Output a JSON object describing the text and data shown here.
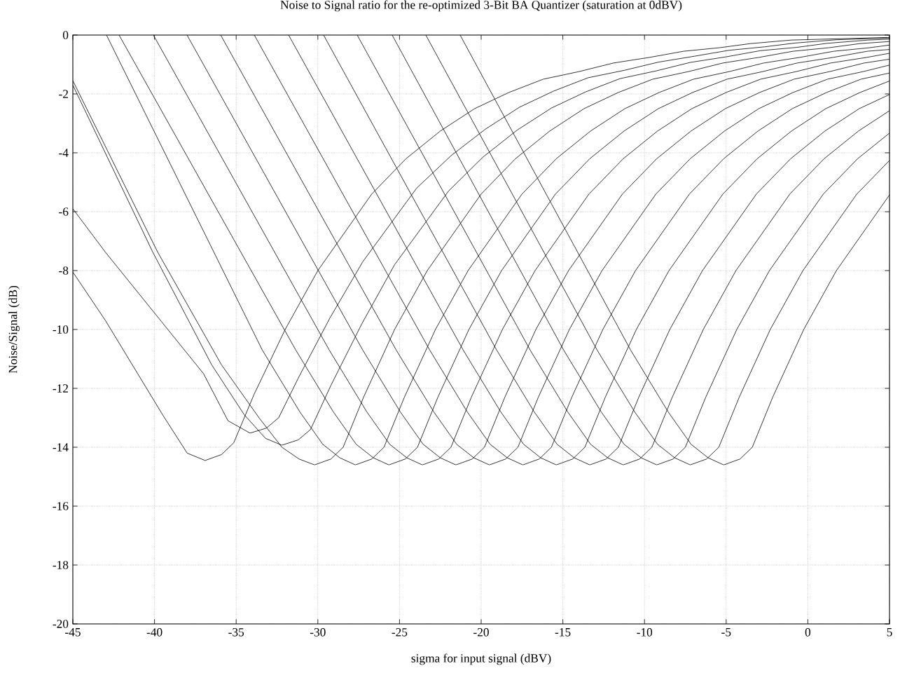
{
  "chart_data": {
    "type": "line",
    "title": "Noise to Signal ratio for the re-optimized 3-Bit BA Quantizer (saturation at 0dBV)",
    "xlabel": "sigma for input signal (dBV)",
    "ylabel": "Noise/Signal (dB)",
    "xlim": [
      -45,
      5
    ],
    "ylim": [
      -20,
      0
    ],
    "xticks": [
      -45,
      -40,
      -35,
      -30,
      -25,
      -20,
      -15,
      -10,
      -5,
      0,
      5
    ],
    "yticks": [
      -20,
      -18,
      -16,
      -14,
      -12,
      -10,
      -8,
      -6,
      -4,
      -2,
      0
    ],
    "grid": true,
    "marker": "none",
    "line_style": "solid",
    "series": [
      {
        "color": "#000000",
        "x": [
          -45,
          -43,
          -39.5,
          -38,
          -36.9,
          -35.9,
          -35.15,
          -33.9,
          -32,
          -30,
          -26.7,
          -24.6,
          -22.5,
          -20.4,
          -18.3,
          -16.2,
          -14,
          -11.9,
          -9.7,
          -7.6,
          -5.4,
          -3.5,
          -1,
          5
        ],
        "values": [
          -8.05,
          -9.7,
          -12.9,
          -14.2,
          -14.45,
          -14.25,
          -13.85,
          -12.2,
          -10,
          -8,
          -5.4,
          -4.2,
          -3.26,
          -2.5,
          -1.95,
          -1.5,
          -1.24,
          -0.95,
          -0.76,
          -0.55,
          -0.43,
          -0.29,
          -0.17,
          -0.08
        ]
      },
      {
        "color": "#000000",
        "x": [
          -45,
          -43,
          -37,
          -35.5,
          -34.15,
          -33.15,
          -32.4,
          -31.15,
          -29.25,
          -27.25,
          -23.95,
          -21.85,
          -19.75,
          -17.65,
          -15.55,
          -13.45,
          -11.25,
          -9.15,
          -6.95,
          -4.85,
          -2.65,
          -0.75,
          1.75,
          5
        ],
        "values": [
          -5.9,
          -7.38,
          -11.5,
          -13.1,
          -13.52,
          -13.35,
          -13,
          -11.6,
          -9.6,
          -7.7,
          -5.2,
          -4.1,
          -3.2,
          -2.45,
          -1.9,
          -1.45,
          -1.2,
          -0.92,
          -0.72,
          -0.52,
          -0.4,
          -0.27,
          -0.16,
          -0.1
        ]
      },
      {
        "color": "#000000",
        "x": [
          -45,
          -40.1,
          -36.5,
          -34.5,
          -33.2,
          -32.2,
          -31.2,
          -30.45,
          -29.2,
          -27.3,
          -25.3,
          -22,
          -19.9,
          -17.8,
          -15.7,
          -13.6,
          -11.5,
          -9.3,
          -7.2,
          -5,
          -2.9,
          -0.7,
          1.2,
          3.7,
          5
        ],
        "values": [
          -1.7,
          -7.38,
          -11.2,
          -12.9,
          -13.7,
          -13.93,
          -13.75,
          -13.4,
          -11.9,
          -9.8,
          -7.8,
          -5.3,
          -4.15,
          -3.23,
          -2.48,
          -1.93,
          -1.48,
          -1.22,
          -0.93,
          -0.74,
          -0.53,
          -0.42,
          -0.28,
          -0.17,
          -0.14
        ]
      },
      {
        "color": "#000000",
        "x": [
          -45,
          -39.8,
          -35.9,
          -33.6,
          -32.2,
          -31.15,
          -30.2,
          -29.2,
          -28.45,
          -27.2,
          -25.3,
          -23.3,
          -20,
          -17.9,
          -15.8,
          -13.7,
          -11.6,
          -9.5,
          -7.3,
          -5.2,
          -3,
          -0.9,
          1.3,
          3.2,
          5
        ],
        "values": [
          -1.55,
          -7.38,
          -11.2,
          -13,
          -14,
          -14.4,
          -14.6,
          -14.4,
          -14,
          -12.3,
          -10,
          -8,
          -5.4,
          -4.2,
          -3.26,
          -2.5,
          -1.95,
          -1.5,
          -1.24,
          -0.95,
          -0.76,
          -0.55,
          -0.43,
          -0.29,
          -0.22
        ]
      },
      {
        "color": "#000000",
        "x": [
          -42.94,
          -33.4,
          -31.1,
          -29.7,
          -28.65,
          -27.7,
          -26.7,
          -25.95,
          -24.7,
          -22.8,
          -20.8,
          -17.5,
          -15.4,
          -13.3,
          -11.2,
          -9.1,
          -7,
          -4.8,
          -2.7,
          -0.5,
          1.6,
          3.8,
          5
        ],
        "values": [
          0,
          -10.7,
          -12.8,
          -13.9,
          -14.36,
          -14.6,
          -14.4,
          -14,
          -12.3,
          -10,
          -8,
          -5.4,
          -4.2,
          -3.26,
          -2.5,
          -1.95,
          -1.5,
          -1.24,
          -0.95,
          -0.76,
          -0.55,
          -0.43,
          -0.34
        ]
      },
      {
        "color": "#000000",
        "x": [
          -42.17,
          -31.35,
          -29.05,
          -27.65,
          -26.6,
          -25.65,
          -24.65,
          -23.9,
          -22.65,
          -20.75,
          -18.75,
          -15.45,
          -13.35,
          -11.25,
          -9.15,
          -7.05,
          -4.95,
          -2.75,
          -0.65,
          1.55,
          3.65,
          5
        ],
        "values": [
          0,
          -10.7,
          -12.8,
          -13.9,
          -14.36,
          -14.6,
          -14.4,
          -14,
          -12.3,
          -10,
          -8,
          -5.4,
          -4.2,
          -3.26,
          -2.5,
          -1.95,
          -1.5,
          -1.24,
          -0.95,
          -0.76,
          -0.55,
          -0.49
        ]
      },
      {
        "color": "#000000",
        "x": [
          -40.07,
          -29.3,
          -27,
          -25.6,
          -24.55,
          -23.6,
          -22.6,
          -21.85,
          -20.6,
          -18.7,
          -16.7,
          -13.4,
          -11.3,
          -9.2,
          -7.1,
          -5,
          -2.9,
          -0.7,
          1.4,
          3.6,
          5
        ],
        "values": [
          0,
          -10.7,
          -12.8,
          -13.9,
          -14.36,
          -14.6,
          -14.4,
          -14,
          -12.3,
          -10,
          -8,
          -5.4,
          -4.2,
          -3.26,
          -2.5,
          -1.95,
          -1.5,
          -1.24,
          -0.95,
          -0.76,
          -0.62
        ]
      },
      {
        "color": "#000000",
        "x": [
          -38.01,
          -27.25,
          -24.95,
          -23.55,
          -22.5,
          -21.55,
          -20.55,
          -19.8,
          -18.55,
          -16.65,
          -14.65,
          -11.35,
          -9.25,
          -7.15,
          -5.05,
          -2.95,
          -0.85,
          1.35,
          3.45,
          5
        ],
        "values": [
          0,
          -10.7,
          -12.8,
          -13.9,
          -14.36,
          -14.6,
          -14.4,
          -14,
          -12.3,
          -10,
          -8,
          -5.4,
          -4.2,
          -3.26,
          -2.5,
          -1.95,
          -1.5,
          -1.24,
          -0.95,
          -0.82
        ]
      },
      {
        "color": "#000000",
        "x": [
          -35.95,
          -25.2,
          -22.9,
          -21.5,
          -20.45,
          -19.5,
          -18.5,
          -17.75,
          -16.5,
          -14.6,
          -12.6,
          -9.3,
          -7.2,
          -5.1,
          -3,
          -0.9,
          1.2,
          3.4,
          5
        ],
        "values": [
          0,
          -10.7,
          -12.8,
          -13.9,
          -14.36,
          -14.6,
          -14.4,
          -14,
          -12.3,
          -10,
          -8,
          -5.4,
          -4.2,
          -3.26,
          -2.5,
          -1.95,
          -1.5,
          -1.24,
          -1.02
        ]
      },
      {
        "color": "#000000",
        "x": [
          -33.89,
          -23.15,
          -20.85,
          -19.45,
          -18.4,
          -17.45,
          -16.45,
          -15.7,
          -14.45,
          -12.55,
          -10.55,
          -7.25,
          -5.15,
          -3.05,
          -0.95,
          1.15,
          3.25,
          5
        ],
        "values": [
          0,
          -10.7,
          -12.8,
          -13.9,
          -14.36,
          -14.6,
          -14.4,
          -14,
          -12.3,
          -10,
          -8,
          -5.4,
          -4.2,
          -3.26,
          -2.5,
          -1.95,
          -1.5,
          -1.29
        ]
      },
      {
        "color": "#000000",
        "x": [
          -31.79,
          -21.1,
          -18.8,
          -17.4,
          -16.35,
          -15.4,
          -14.4,
          -13.65,
          -12.4,
          -10.5,
          -8.5,
          -5.2,
          -3.1,
          -1,
          1.1,
          3.2,
          5
        ],
        "values": [
          0,
          -10.7,
          -12.8,
          -13.9,
          -14.36,
          -14.6,
          -14.4,
          -14,
          -12.3,
          -10,
          -8,
          -5.4,
          -4.2,
          -3.26,
          -2.5,
          -1.95,
          -1.56
        ]
      },
      {
        "color": "#000000",
        "x": [
          -29.65,
          -19.05,
          -16.75,
          -15.35,
          -14.3,
          -13.35,
          -12.35,
          -11.6,
          -10.35,
          -8.45,
          -6.45,
          -3.15,
          -1.05,
          1.05,
          3.15,
          5
        ],
        "values": [
          0,
          -10.7,
          -12.8,
          -13.9,
          -14.36,
          -14.6,
          -14.4,
          -14,
          -12.3,
          -10,
          -8,
          -5.4,
          -4.2,
          -3.26,
          -2.5,
          -2.02
        ]
      },
      {
        "color": "#000000",
        "x": [
          -27.59,
          -17,
          -14.7,
          -13.3,
          -12.25,
          -11.3,
          -10.3,
          -9.55,
          -8.3,
          -6.4,
          -4.4,
          -1.1,
          1,
          3.1,
          5
        ],
        "values": [
          0,
          -10.7,
          -12.8,
          -13.9,
          -14.36,
          -14.6,
          -14.4,
          -14,
          -12.3,
          -10,
          -8,
          -5.4,
          -4.2,
          -3.26,
          -2.57
        ]
      },
      {
        "color": "#000000",
        "x": [
          -25.45,
          -14.95,
          -12.65,
          -11.25,
          -10.2,
          -9.25,
          -8.25,
          -7.5,
          -6.25,
          -4.35,
          -2.35,
          0.95,
          3.05,
          5
        ],
        "values": [
          0,
          -10.7,
          -12.8,
          -13.9,
          -14.36,
          -14.6,
          -14.4,
          -14,
          -12.3,
          -10,
          -8,
          -5.4,
          -4.2,
          -3.33
        ]
      },
      {
        "color": "#000000",
        "x": [
          -23.39,
          -12.9,
          -10.6,
          -9.2,
          -8.15,
          -7.2,
          -6.2,
          -5.45,
          -4.2,
          -2.3,
          -0.3,
          3,
          5
        ],
        "values": [
          0,
          -10.7,
          -12.8,
          -13.9,
          -14.36,
          -14.6,
          -14.4,
          -14,
          -12.3,
          -10,
          -8,
          -5.4,
          -4.26
        ]
      },
      {
        "color": "#000000",
        "x": [
          -21.29,
          -10.85,
          -8.55,
          -7.15,
          -6.1,
          -5.15,
          -4.15,
          -3.4,
          -2.15,
          -0.25,
          1.75,
          5
        ],
        "values": [
          0,
          -10.7,
          -12.8,
          -13.9,
          -14.36,
          -14.6,
          -14.4,
          -14,
          -12.3,
          -10,
          -8,
          -5.43
        ]
      }
    ]
  }
}
